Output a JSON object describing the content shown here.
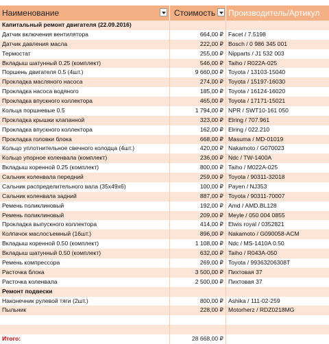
{
  "header": {
    "columns": [
      "Наименование",
      "Стоимость",
      "Производитель/Артикул"
    ]
  },
  "sections": [
    {
      "title": "Капитальный ремонт двигателя (22.09.2016)",
      "rows": [
        [
          "Датчик включения вентилятора",
          "664,00 ₽",
          "Facet / 7.5198"
        ],
        [
          "Датчик давления масла",
          "222,00 ₽",
          "Bosch / 0 986 345 001"
        ],
        [
          "Термостат",
          "255,00 ₽",
          "Nipparts / J1 532 003"
        ],
        [
          "Вкладыш шатунный 0.25 (комплект)",
          "546,00 ₽",
          "Taiho / R022A-025"
        ],
        [
          "Поршень двигателя 0.5 (4шт.)",
          "9 660,00 ₽",
          "Toyota / 13103-15040"
        ],
        [
          "Прокладка масляного насоса",
          "274,00 ₽",
          "Toyota / 15197-16030"
        ],
        [
          "Прокладка насоса водяного",
          "185,00 ₽",
          "Toyota / 16124-16020"
        ],
        [
          "Прокладка впускного коллектора",
          "465,00 ₽",
          "Toyota / 17171-15021"
        ],
        [
          "Кольца поршневые 0.5",
          "1 794,00 ₽",
          "NPR / SWT10-161 050"
        ],
        [
          "Прокладка крышки клапанной",
          "323,00 ₽",
          "Elring / 707.961"
        ],
        [
          "Прокладка впускного коллектора",
          "162,00 ₽",
          "Elring / 022.210"
        ],
        [
          "Прокладка головки блока",
          "668,00 ₽",
          "Masuma / MD-01019"
        ],
        [
          "Кольцо уплотнительное свечного колодца (4шт.)",
          "420,00 ₽",
          "Nakamoto / G070023"
        ],
        [
          "Кольцо упорное коленвала (комплект)",
          "236,00 ₽",
          "Ndc / TW-1400A"
        ],
        [
          "Вкладыш коренной 0.25 (комплект)",
          "800,00 ₽",
          "Taiho / M022A-025"
        ],
        [
          "Сальник коленвала передний",
          "259,00 ₽",
          "Toyota / 90311-32018"
        ],
        [
          "Сальник распределительного вала (35x49x6)",
          "100,00 ₽",
          "Payen / NJ353"
        ],
        [
          "Сальник коленвала задний",
          "887,00 ₽",
          "Toyota / 90311-70007"
        ],
        [
          "Ремень поликлиновый",
          "192,00 ₽",
          "Amd / AMD.BL128"
        ],
        [
          "Ремень поликлиновый",
          "209,00 ₽",
          "Meyle / 050 004 0855"
        ],
        [
          "Прокладка выпускного коллектора",
          "414,00 ₽",
          "Elwis royal / 0352821"
        ],
        [
          "Колпачок маслосъемный (16шт.)",
          "896,00 ₽",
          "Nakamoto / G090058-ACM"
        ],
        [
          "Вкладыш коренной 0.50 (комплект)",
          "1 108,00 ₽",
          "Ndc / MS-1410A 0.50"
        ],
        [
          "Вкладыш шатунный 0.50 (комплект)",
          "632,00 ₽",
          "Taiho / R043A-050"
        ],
        [
          "Ремень компрессора",
          "269,00 ₽",
          "Toyota / 99363206308T"
        ],
        [
          "Расточка блока",
          "3 500,00 ₽",
          "Пихтовая 37"
        ],
        [
          "Расточка коленвала",
          "2 500,00 ₽",
          "Пихтовая 37"
        ]
      ]
    },
    {
      "title": "Ремонт подвески",
      "rows": [
        [
          "Наконечник рулевой тяги (2шт.)",
          "800,00 ₽",
          "Ashika / 111-02-259"
        ],
        [
          "Пыльник",
          "228,00 ₽",
          "Motorherz / RDZ0218MG"
        ]
      ]
    }
  ],
  "total": {
    "label": "Итого:",
    "value": "28 668,00 ₽"
  }
}
